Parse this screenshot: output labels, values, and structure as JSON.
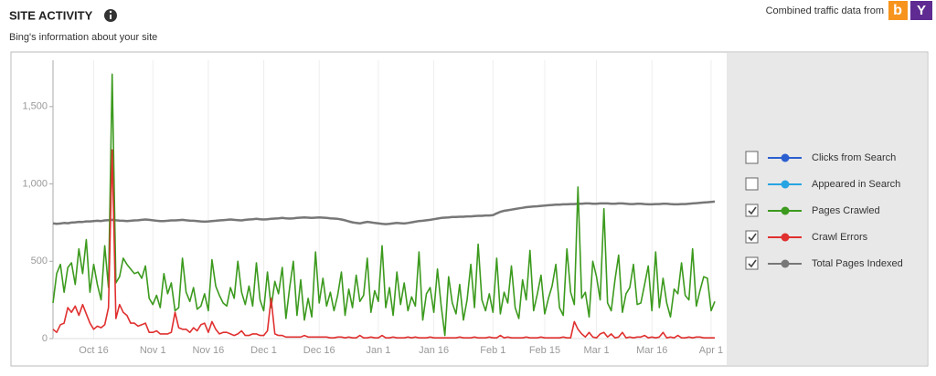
{
  "header": {
    "title": "SITE ACTIVITY",
    "subtitle": "Bing's information about your site",
    "source_text": "Combined traffic data from"
  },
  "chart_data": {
    "type": "line",
    "categories": [
      null,
      null,
      null,
      null,
      null,
      null,
      null,
      null,
      null,
      null,
      null,
      "Oct 16",
      null,
      null,
      null,
      null,
      null,
      null,
      null,
      null,
      null,
      null,
      null,
      null,
      null,
      null,
      null,
      "Nov 1",
      null,
      null,
      null,
      null,
      null,
      null,
      null,
      null,
      null,
      null,
      null,
      null,
      null,
      null,
      "Nov 16",
      null,
      null,
      null,
      null,
      null,
      null,
      null,
      null,
      null,
      null,
      null,
      null,
      null,
      null,
      "Dec 1",
      null,
      null,
      null,
      null,
      null,
      null,
      null,
      null,
      null,
      null,
      null,
      null,
      null,
      null,
      "Dec 16",
      null,
      null,
      null,
      null,
      null,
      null,
      null,
      null,
      null,
      null,
      null,
      null,
      null,
      null,
      null,
      "Jan 1",
      null,
      null,
      null,
      null,
      null,
      null,
      null,
      null,
      null,
      null,
      null,
      null,
      null,
      null,
      "Jan 16",
      null,
      null,
      null,
      null,
      null,
      null,
      null,
      null,
      null,
      null,
      null,
      null,
      null,
      null,
      null,
      "Feb 1",
      null,
      null,
      null,
      null,
      null,
      null,
      null,
      null,
      null,
      null,
      null,
      null,
      null,
      "Feb 15",
      null,
      null,
      null,
      null,
      null,
      null,
      null,
      null,
      null,
      null,
      null,
      null,
      null,
      "Mar 1",
      null,
      null,
      null,
      null,
      null,
      null,
      null,
      null,
      null,
      null,
      null,
      null,
      null,
      null,
      "Mar 16",
      null,
      null,
      null,
      null,
      null,
      null,
      null,
      null,
      null,
      null,
      null,
      null,
      null,
      null,
      null,
      "Apr 1",
      null
    ],
    "ylim": [
      0,
      1800
    ],
    "yticks": [
      0,
      500,
      {
        "value": 1000,
        "label": "1,000"
      },
      {
        "value": 1500,
        "label": "1,500"
      }
    ],
    "grid": true,
    "legend": "right",
    "series": [
      {
        "name": "Clicks from Search",
        "color": "#2b5fd0",
        "checked": false
      },
      {
        "name": "Appeared in Search",
        "color": "#27a4e2",
        "checked": false
      },
      {
        "name": "Pages Crawled",
        "color": "#3c9a1e",
        "checked": true,
        "values": [
          230,
          420,
          480,
          300,
          460,
          490,
          350,
          580,
          420,
          640,
          300,
          480,
          350,
          250,
          600,
          330,
          1710,
          360,
          400,
          520,
          480,
          450,
          420,
          430,
          390,
          470,
          260,
          220,
          280,
          200,
          420,
          290,
          360,
          180,
          200,
          520,
          300,
          240,
          330,
          190,
          210,
          290,
          180,
          510,
          340,
          280,
          230,
          210,
          330,
          260,
          500,
          300,
          220,
          340,
          210,
          490,
          250,
          180,
          430,
          200,
          370,
          290,
          460,
          130,
          330,
          500,
          150,
          380,
          120,
          260,
          140,
          560,
          230,
          390,
          210,
          300,
          180,
          280,
          430,
          150,
          320,
          200,
          410,
          240,
          280,
          520,
          170,
          310,
          240,
          600,
          200,
          330,
          150,
          430,
          220,
          360,
          180,
          270,
          210,
          560,
          120,
          290,
          330,
          170,
          450,
          210,
          20,
          400,
          230,
          160,
          350,
          120,
          250,
          480,
          200,
          610,
          250,
          180,
          290,
          170,
          520,
          160,
          300,
          230,
          470,
          200,
          130,
          380,
          250,
          570,
          180,
          290,
          410,
          160,
          260,
          340,
          480,
          200,
          150,
          580,
          300,
          220,
          980,
          260,
          300,
          140,
          500,
          400,
          250,
          840,
          230,
          180,
          380,
          540,
          170,
          290,
          330,
          480,
          220,
          230,
          350,
          470,
          180,
          560,
          200,
          390,
          230,
          140,
          320,
          290,
          490,
          280,
          250,
          580,
          210,
          310,
          400,
          390,
          180,
          240
        ]
      },
      {
        "name": "Crawl Errors",
        "color": "#e0302f",
        "checked": true,
        "values": [
          60,
          40,
          90,
          100,
          200,
          170,
          210,
          150,
          220,
          160,
          100,
          60,
          80,
          70,
          90,
          200,
          1220,
          130,
          220,
          170,
          150,
          100,
          100,
          80,
          90,
          100,
          40,
          40,
          50,
          30,
          30,
          30,
          40,
          170,
          70,
          60,
          60,
          40,
          70,
          50,
          90,
          100,
          40,
          110,
          60,
          30,
          40,
          40,
          30,
          20,
          30,
          50,
          20,
          20,
          30,
          30,
          20,
          20,
          50,
          260,
          30,
          20,
          20,
          10,
          10,
          10,
          10,
          10,
          20,
          10,
          10,
          10,
          10,
          10,
          10,
          5,
          5,
          10,
          10,
          5,
          10,
          5,
          5,
          20,
          5,
          5,
          10,
          5,
          5,
          20,
          5,
          5,
          10,
          5,
          5,
          5,
          10,
          5,
          10,
          5,
          5,
          5,
          10,
          5,
          5,
          5,
          5,
          5,
          5,
          5,
          10,
          5,
          5,
          5,
          10,
          5,
          5,
          5,
          10,
          5,
          5,
          20,
          5,
          10,
          5,
          5,
          5,
          5,
          10,
          5,
          5,
          5,
          10,
          5,
          5,
          5,
          5,
          5,
          10,
          5,
          5,
          110,
          60,
          30,
          10,
          40,
          10,
          5,
          30,
          40,
          10,
          30,
          5,
          10,
          40,
          5,
          10,
          5,
          10,
          10,
          20,
          5,
          10,
          5,
          10,
          40,
          5,
          10,
          5,
          20,
          5,
          5,
          10,
          5,
          10,
          10,
          5,
          5,
          5,
          5
        ]
      },
      {
        "name": "Total Pages Indexed",
        "color": "#777777",
        "checked": true,
        "values": [
          745,
          742,
          744,
          748,
          746,
          750,
          752,
          755,
          754,
          758,
          758,
          760,
          762,
          760,
          764,
          766,
          768,
          765,
          763,
          762,
          760,
          762,
          764,
          765,
          768,
          770,
          768,
          765,
          762,
          760,
          760,
          762,
          764,
          764,
          766,
          768,
          765,
          763,
          762,
          760,
          758,
          756,
          758,
          760,
          762,
          764,
          766,
          768,
          770,
          768,
          766,
          764,
          768,
          770,
          772,
          774,
          772,
          770,
          772,
          774,
          776,
          778,
          780,
          778,
          776,
          778,
          780,
          782,
          784,
          782,
          780,
          782,
          784,
          782,
          780,
          778,
          776,
          774,
          770,
          765,
          758,
          752,
          748,
          745,
          750,
          755,
          752,
          748,
          745,
          742,
          740,
          742,
          745,
          748,
          746,
          744,
          748,
          752,
          756,
          760,
          762,
          765,
          768,
          772,
          776,
          780,
          782,
          784,
          786,
          786,
          788,
          788,
          790,
          790,
          792,
          794,
          794,
          796,
          796,
          798,
          810,
          820,
          826,
          830,
          834,
          838,
          842,
          846,
          850,
          852,
          854,
          856,
          858,
          860,
          862,
          864,
          866,
          866,
          868,
          868,
          870,
          870,
          872,
          872,
          874,
          874,
          872,
          872,
          874,
          874,
          874,
          872,
          872,
          874,
          874,
          872,
          870,
          870,
          872,
          872,
          870,
          868,
          868,
          870,
          870,
          872,
          872,
          870,
          868,
          868,
          870,
          870,
          872,
          874,
          876,
          878,
          880,
          882,
          884,
          886
        ]
      }
    ]
  }
}
